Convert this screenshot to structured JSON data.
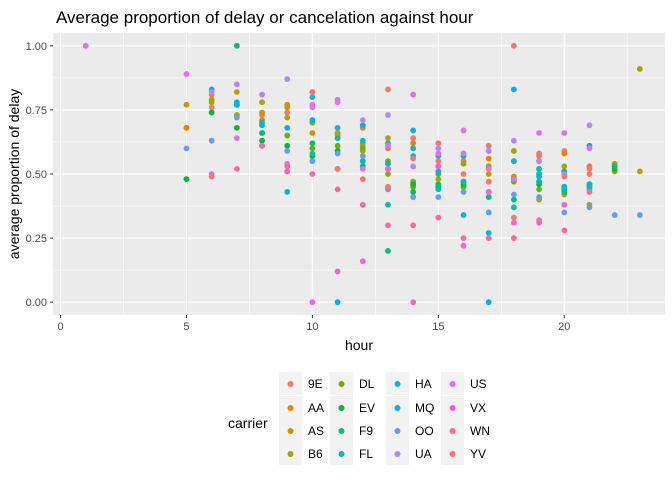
{
  "chart_data": {
    "type": "scatter",
    "title": "Average proportion of delay or cancelation against hour",
    "xlabel": "hour",
    "ylabel": "average proportion of delay",
    "xlim": [
      -0.3,
      24
    ],
    "ylim": [
      -0.05,
      1.05
    ],
    "x_ticks": [
      0,
      5,
      10,
      15,
      20
    ],
    "y_ticks": [
      0.0,
      0.25,
      0.5,
      0.75,
      1.0
    ],
    "y_tick_labels": [
      "0.00",
      "0.25",
      "0.50",
      "0.75",
      "1.00"
    ],
    "grid": true,
    "legend": {
      "title": "carrier",
      "position": "bottom",
      "columns": [
        [
          "9E",
          "AA",
          "AS",
          "B6"
        ],
        [
          "DL",
          "EV",
          "F9",
          "FL"
        ],
        [
          "HA",
          "MQ",
          "OO",
          "UA"
        ],
        [
          "US",
          "VX",
          "WN",
          "YV"
        ]
      ]
    },
    "colors": {
      "9E": "#F8766D",
      "AA": "#E58700",
      "AS": "#C99800",
      "B6": "#A3A500",
      "DL": "#6BB100",
      "EV": "#00BA38",
      "F9": "#00BF7D",
      "FL": "#00C0AF",
      "HA": "#00BCD8",
      "MQ": "#00B0F6",
      "OO": "#619CFF",
      "UA": "#B983FF",
      "US": "#E76BF3",
      "VX": "#FD61D1",
      "WN": "#FF67A4",
      "YV": "#F8766D"
    },
    "series": [
      {
        "name": "9E",
        "x": [
          5,
          6,
          7,
          8,
          9,
          10,
          11,
          12,
          13,
          14,
          15,
          16,
          17,
          18,
          19,
          20,
          21,
          22
        ],
        "y": [
          0.68,
          0.76,
          0.73,
          0.73,
          0.74,
          0.71,
          0.65,
          0.61,
          0.83,
          0.64,
          0.62,
          0.58,
          0.61,
          1.0,
          0.58,
          0.59,
          0.5,
          0.54
        ]
      },
      {
        "name": "AA",
        "x": [
          5,
          6,
          7,
          8,
          9,
          10,
          11,
          12,
          13,
          14,
          15,
          16,
          17,
          18,
          19,
          20,
          21,
          22
        ],
        "y": [
          0.68,
          0.79,
          0.77,
          0.71,
          0.77,
          0.66,
          0.66,
          0.68,
          0.6,
          0.62,
          0.58,
          0.55,
          0.56,
          0.55,
          0.55,
          0.58,
          0.53,
          0.53
        ]
      },
      {
        "name": "AS",
        "x": [
          5,
          6,
          7,
          8,
          9,
          10,
          11,
          12,
          13,
          14,
          15,
          16,
          17,
          18,
          19,
          20,
          21,
          22,
          23
        ],
        "y": [
          0.77,
          0.81,
          0.82,
          0.74,
          0.76,
          0.7,
          0.66,
          0.59,
          0.64,
          0.47,
          0.53,
          0.47,
          0.5,
          0.49,
          0.4,
          0.42,
          0.38,
          0.54,
          0.51
        ]
      },
      {
        "name": "B6",
        "x": [
          5,
          6,
          7,
          8,
          9,
          10,
          11,
          12,
          13,
          14,
          15,
          16,
          17,
          18,
          19,
          20,
          21,
          22,
          23
        ],
        "y": [
          0.48,
          0.78,
          0.73,
          0.78,
          0.72,
          0.7,
          0.64,
          0.62,
          0.5,
          0.47,
          0.48,
          0.54,
          0.53,
          0.59,
          0.5,
          0.53,
          0.45,
          0.51,
          0.91
        ]
      },
      {
        "name": "DL",
        "x": [
          6,
          7,
          8,
          9,
          10,
          11,
          12,
          13,
          14,
          15,
          16,
          17,
          18,
          19,
          20,
          21
        ],
        "y": [
          0.74,
          0.77,
          0.66,
          0.65,
          0.6,
          0.61,
          0.6,
          0.55,
          0.45,
          0.5,
          0.45,
          0.52,
          0.47,
          0.44,
          0.45,
          0.44
        ]
      },
      {
        "name": "EV",
        "x": [
          5,
          6,
          7,
          8,
          9,
          10,
          11,
          12,
          13,
          14,
          15,
          16,
          17,
          18,
          19,
          20,
          21,
          22
        ],
        "y": [
          0.48,
          0.74,
          0.68,
          0.63,
          0.61,
          0.57,
          0.59,
          0.55,
          0.52,
          0.46,
          0.45,
          0.46,
          0.43,
          0.48,
          0.46,
          0.44,
          0.46,
          0.52
        ]
      },
      {
        "name": "F9",
        "x": [
          7,
          8,
          10,
          11,
          12,
          13,
          14,
          15,
          16,
          17,
          18,
          19,
          20,
          21,
          22
        ],
        "y": [
          1.0,
          0.66,
          0.62,
          0.52,
          0.53,
          0.2,
          0.43,
          0.46,
          0.47,
          0.41,
          0.4,
          0.47,
          0.43,
          0.46,
          0.53
        ]
      },
      {
        "name": "FL",
        "x": [
          7,
          8,
          9,
          10,
          11,
          12,
          13,
          14,
          15,
          16,
          17,
          18,
          19,
          20,
          21
        ],
        "y": [
          0.77,
          0.7,
          0.43,
          0.58,
          0.64,
          0.55,
          0.38,
          0.6,
          0.44,
          0.47,
          0.27,
          0.37,
          0.52,
          0.45,
          0.46
        ]
      },
      {
        "name": "HA",
        "x": [
          10,
          11,
          12,
          13,
          14,
          15,
          16,
          17,
          18,
          19,
          20,
          21
        ],
        "y": [
          0.8,
          0.68,
          0.63,
          0.62,
          0.57,
          0.57,
          0.57,
          0.59,
          0.55,
          0.5,
          0.45,
          0.45
        ]
      },
      {
        "name": "MQ",
        "x": [
          6,
          7,
          8,
          9,
          10,
          11,
          12,
          13,
          14,
          15,
          16,
          17,
          18,
          19,
          20,
          21
        ],
        "y": [
          0.83,
          0.78,
          0.69,
          0.68,
          0.71,
          0.0,
          0.69,
          0.54,
          0.67,
          0.51,
          0.34,
          0.0,
          0.83,
          0.49,
          0.51,
          0.61
        ]
      },
      {
        "name": "OO",
        "x": [
          5,
          6,
          7,
          8,
          9,
          10,
          11,
          12,
          13,
          14,
          15,
          16,
          17,
          18,
          19,
          20,
          21,
          22,
          23
        ],
        "y": [
          0.6,
          0.63,
          0.72,
          0.61,
          0.59,
          0.55,
          0.58,
          0.57,
          0.44,
          0.41,
          0.41,
          0.43,
          0.35,
          0.42,
          0.41,
          0.35,
          0.37,
          0.34,
          0.34
        ]
      },
      {
        "name": "UA",
        "x": [
          6,
          7,
          8,
          9,
          10,
          11,
          12,
          13,
          14,
          15,
          16,
          17,
          18,
          19,
          20,
          21
        ],
        "y": [
          0.82,
          0.85,
          0.81,
          0.87,
          0.76,
          0.79,
          0.71,
          0.73,
          0.53,
          0.6,
          0.58,
          0.59,
          0.63,
          0.55,
          0.5,
          0.69
        ]
      },
      {
        "name": "US",
        "x": [
          1,
          5,
          6,
          7,
          8,
          9,
          10,
          11,
          12,
          13,
          14,
          15,
          16,
          17,
          18,
          19,
          20,
          21
        ],
        "y": [
          1.0,
          0.89,
          0.5,
          0.64,
          0.61,
          0.54,
          0.77,
          0.78,
          0.52,
          0.61,
          0.81,
          0.58,
          0.67,
          0.52,
          0.48,
          0.66,
          0.66,
          0.6
        ]
      },
      {
        "name": "VX",
        "x": [
          9,
          10,
          11,
          12,
          13,
          14,
          15,
          16,
          17,
          18,
          19,
          20
        ],
        "y": [
          0.51,
          0.0,
          0.12,
          0.16,
          0.52,
          0.0,
          0.53,
          0.22,
          0.43,
          0.31,
          0.31,
          0.38
        ]
      },
      {
        "name": "WN",
        "x": [
          7,
          8,
          9,
          10,
          11,
          12,
          13,
          14,
          15,
          16,
          17,
          18,
          19,
          20,
          21
        ],
        "y": [
          0.52,
          0.61,
          0.53,
          0.5,
          0.44,
          0.38,
          0.3,
          0.3,
          0.33,
          0.25,
          0.25,
          0.25,
          0.32,
          0.28,
          0.43
        ]
      },
      {
        "name": "YV",
        "x": [
          6,
          10,
          11,
          12,
          13,
          14,
          15,
          16,
          17,
          18,
          19,
          20,
          21
        ],
        "y": [
          0.49,
          0.82,
          0.52,
          0.48,
          0.45,
          0.56,
          0.55,
          0.5,
          0.47,
          0.33,
          0.57,
          0.49,
          0.52
        ]
      }
    ]
  }
}
